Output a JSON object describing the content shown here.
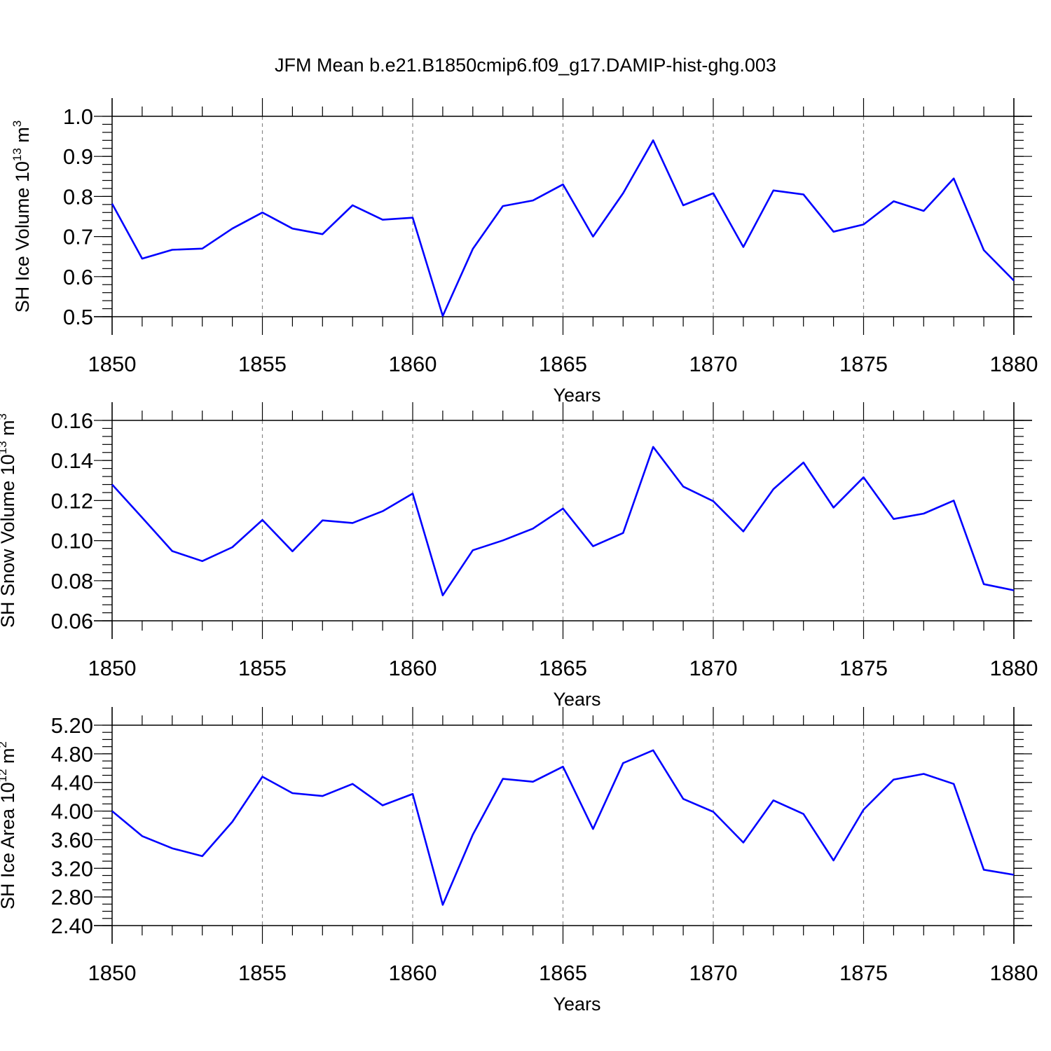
{
  "title": "JFM Mean b.e21.B1850cmip6.f09_g17.DAMIP-hist-ghg.003",
  "colors": {
    "line": "#0000ff",
    "grid": "#888888",
    "axis": "#000000"
  },
  "chart_data": [
    {
      "type": "line",
      "xlabel": "Years",
      "ylabel": "SH Ice Volume 10",
      "ylabel_sup": "13",
      "ylabel_unit": " m",
      "ylabel_unit_sup": "3",
      "xlim": [
        1850,
        1880
      ],
      "ylim": [
        0.5,
        1.0
      ],
      "xticks": [
        "1850",
        "1855",
        "1860",
        "1865",
        "1870",
        "1875",
        "1880"
      ],
      "yticks": [
        "0.5",
        "0.6",
        "0.7",
        "0.8",
        "0.9",
        "1.0"
      ],
      "ytick_values": [
        0.5,
        0.6,
        0.7,
        0.8,
        0.9,
        1.0
      ],
      "y_minor_step": 0.02,
      "grid": "vertical dashed at major x ticks",
      "x": [
        1850,
        1851,
        1852,
        1853,
        1854,
        1855,
        1856,
        1857,
        1858,
        1859,
        1860,
        1861,
        1862,
        1863,
        1864,
        1865,
        1866,
        1867,
        1868,
        1869,
        1870,
        1871,
        1872,
        1873,
        1874,
        1875,
        1876,
        1877,
        1878,
        1879,
        1880
      ],
      "y": [
        0.782,
        0.645,
        0.667,
        0.67,
        0.72,
        0.76,
        0.72,
        0.706,
        0.778,
        0.742,
        0.747,
        0.502,
        0.669,
        0.776,
        0.79,
        0.83,
        0.7,
        0.808,
        0.94,
        0.778,
        0.808,
        0.674,
        0.815,
        0.805,
        0.712,
        0.73,
        0.788,
        0.764,
        0.845,
        0.666,
        0.59
      ]
    },
    {
      "type": "line",
      "xlabel": "Years",
      "ylabel": "SH Snow Volume 10",
      "ylabel_sup": "13",
      "ylabel_unit": " m",
      "ylabel_unit_sup": "3",
      "xlim": [
        1850,
        1880
      ],
      "ylim": [
        0.06,
        0.16
      ],
      "xticks": [
        "1850",
        "1855",
        "1860",
        "1865",
        "1870",
        "1875",
        "1880"
      ],
      "yticks": [
        "0.06",
        "0.08",
        "0.10",
        "0.12",
        "0.14",
        "0.16"
      ],
      "ytick_values": [
        0.06,
        0.08,
        0.1,
        0.12,
        0.14,
        0.16
      ],
      "y_minor_step": 0.004,
      "grid": "vertical dashed at major x ticks",
      "x": [
        1850,
        1851,
        1852,
        1853,
        1854,
        1855,
        1856,
        1857,
        1858,
        1859,
        1860,
        1861,
        1862,
        1863,
        1864,
        1865,
        1866,
        1867,
        1868,
        1869,
        1870,
        1871,
        1872,
        1873,
        1874,
        1875,
        1876,
        1877,
        1878,
        1879,
        1880
      ],
      "y": [
        0.128,
        0.1115,
        0.0948,
        0.0898,
        0.0967,
        0.1103,
        0.0947,
        0.1101,
        0.1088,
        0.1147,
        0.1235,
        0.0727,
        0.0952,
        0.1001,
        0.106,
        0.116,
        0.0972,
        0.1038,
        0.1468,
        0.127,
        0.1197,
        0.1046,
        0.1257,
        0.139,
        0.1165,
        0.1316,
        0.1108,
        0.1135,
        0.12,
        0.0783,
        0.0752
      ]
    },
    {
      "type": "line",
      "xlabel": "Years",
      "ylabel": "SH Ice Area 10",
      "ylabel_sup": "12",
      "ylabel_unit": " m",
      "ylabel_unit_sup": "2",
      "xlim": [
        1850,
        1880
      ],
      "ylim": [
        2.4,
        5.2
      ],
      "xticks": [
        "1850",
        "1855",
        "1860",
        "1865",
        "1870",
        "1875",
        "1880"
      ],
      "yticks": [
        "2.40",
        "2.80",
        "3.20",
        "3.60",
        "4.00",
        "4.40",
        "4.80",
        "5.20"
      ],
      "ytick_values": [
        2.4,
        2.8,
        3.2,
        3.6,
        4.0,
        4.4,
        4.8,
        5.2
      ],
      "y_minor_step": 0.1,
      "grid": "vertical dashed at major x ticks",
      "x": [
        1850,
        1851,
        1852,
        1853,
        1854,
        1855,
        1856,
        1857,
        1858,
        1859,
        1860,
        1861,
        1862,
        1863,
        1864,
        1865,
        1866,
        1867,
        1868,
        1869,
        1870,
        1871,
        1872,
        1873,
        1874,
        1875,
        1876,
        1877,
        1878,
        1879,
        1880
      ],
      "y": [
        4.0,
        3.65,
        3.48,
        3.37,
        3.85,
        4.48,
        4.25,
        4.21,
        4.38,
        4.08,
        4.24,
        2.69,
        3.67,
        4.45,
        4.41,
        4.62,
        3.75,
        4.67,
        4.85,
        4.17,
        3.99,
        3.56,
        4.15,
        3.96,
        3.31,
        4.02,
        4.44,
        4.52,
        4.38,
        3.18,
        3.11
      ]
    }
  ]
}
